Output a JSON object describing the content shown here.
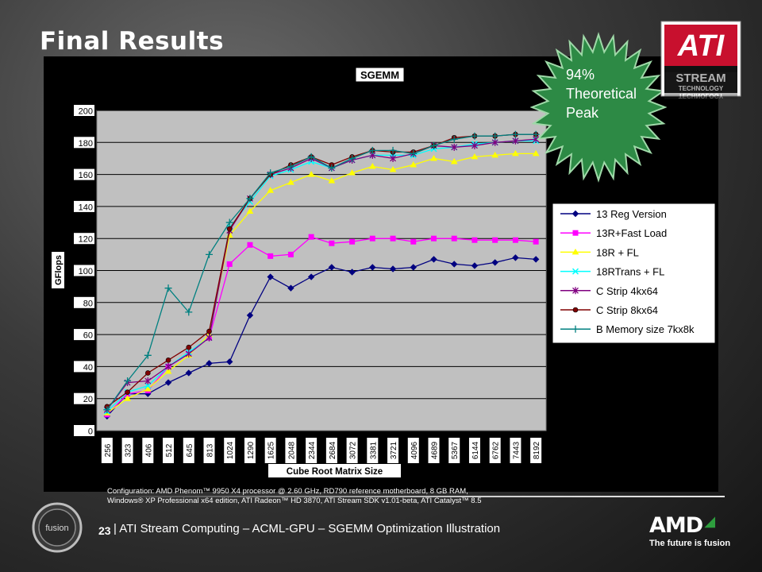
{
  "slide": {
    "title": "Final Results",
    "badge": {
      "lines": [
        "94%",
        "Theoretical",
        "Peak"
      ]
    },
    "ati_logo": {
      "text": "ATI",
      "sub1": "STREAM",
      "sub2": "TECHNOLOGY",
      "color": "#c8102e"
    },
    "config_lines": [
      "Configuration: AMD Phenom™ 9950 X4 processor @ 2.60 GHz, RD790 reference motherboard, 8 GB RAM,",
      "Windows® XP Professional x64 edition, ATI Radeon™ HD 3870, ATI Stream SDK v1.01-beta, ATI Catalyst™ 8.5"
    ],
    "page_number": "23",
    "footer_text": "| ATI Stream Computing – ACML-GPU – SGEMM Optimization Illustration",
    "amd_wordmark": "AMD",
    "amd_tagline": "The future is fusion",
    "fusion_label": "fusion"
  },
  "chart_data": {
    "type": "line",
    "title": "SGEMM",
    "xlabel": "Cube Root Matrix Size",
    "ylabel": "GFlops",
    "ylim": [
      0,
      200
    ],
    "yticks": [
      0,
      20,
      40,
      60,
      80,
      100,
      120,
      140,
      160,
      180,
      200
    ],
    "grid": true,
    "legend_position": "right",
    "plot_background": "#c0c0c0",
    "categories": [
      "256",
      "323",
      "406",
      "512",
      "645",
      "813",
      "1024",
      "1290",
      "1625",
      "2048",
      "2344",
      "2684",
      "3072",
      "3381",
      "3721",
      "4096",
      "4689",
      "5367",
      "6144",
      "6762",
      "7443",
      "8192"
    ],
    "series": [
      {
        "name": "13 Reg Version",
        "color": "#000080",
        "marker": "diamond",
        "values": [
          9,
          23,
          23,
          30,
          36,
          42,
          43,
          72,
          96,
          89,
          96,
          102,
          99,
          102,
          101,
          102,
          107,
          104,
          103,
          105,
          108,
          107
        ]
      },
      {
        "name": "13R+Fast Load",
        "color": "#ff00ff",
        "marker": "square",
        "values": [
          10,
          23,
          25,
          40,
          48,
          58,
          104,
          116,
          109,
          110,
          121,
          117,
          118,
          120,
          120,
          118,
          120,
          120,
          119,
          119,
          119,
          118
        ]
      },
      {
        "name": "18R + FL",
        "color": "#ffff00",
        "marker": "triangle",
        "values": [
          11,
          20,
          26,
          37,
          47,
          60,
          122,
          137,
          150,
          155,
          160,
          156,
          161,
          165,
          163,
          166,
          170,
          168,
          171,
          172,
          173,
          173
        ]
      },
      {
        "name": "18RTrans + FL",
        "color": "#00ffff",
        "marker": "x",
        "values": [
          12,
          24,
          28,
          40,
          49,
          58,
          127,
          143,
          159,
          163,
          168,
          164,
          169,
          172,
          172,
          172,
          176,
          177,
          179,
          180,
          181,
          181
        ]
      },
      {
        "name": "C Strip 4kx64",
        "color": "#800080",
        "marker": "star",
        "values": [
          13,
          30,
          31,
          40,
          48,
          58,
          125,
          145,
          160,
          164,
          170,
          164,
          169,
          172,
          170,
          173,
          178,
          177,
          178,
          180,
          181,
          182
        ]
      },
      {
        "name": "C Strip 8kx64",
        "color": "#800000",
        "marker": "circle",
        "values": [
          15,
          24,
          36,
          44,
          52,
          62,
          126,
          145,
          160,
          166,
          171,
          166,
          171,
          175,
          174,
          174,
          178,
          183,
          184,
          184,
          185,
          185
        ]
      },
      {
        "name": "B Memory size 7kx8k",
        "color": "#008080",
        "marker": "plus",
        "values": [
          13,
          31,
          47,
          89,
          74,
          110,
          130,
          145,
          161,
          165,
          171,
          164,
          170,
          175,
          175,
          173,
          178,
          182,
          184,
          184,
          185,
          185
        ]
      }
    ]
  }
}
